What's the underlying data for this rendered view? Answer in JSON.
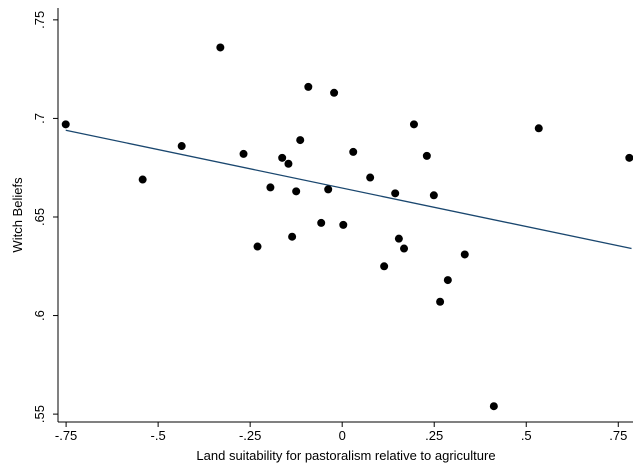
{
  "chart_data": {
    "type": "scatter",
    "x_label": "Land suitability for pastoralism relative to agriculture",
    "y_label": "Witch Beliefs",
    "x": [
      -0.751,
      -0.542,
      -0.436,
      -0.331,
      -0.268,
      -0.23,
      -0.195,
      -0.163,
      -0.146,
      -0.136,
      -0.125,
      -0.114,
      -0.092,
      -0.057,
      -0.038,
      -0.022,
      0.003,
      0.03,
      0.076,
      0.114,
      0.144,
      0.154,
      0.168,
      0.195,
      0.23,
      0.249,
      0.266,
      0.287,
      0.333,
      0.412,
      0.534,
      0.78
    ],
    "values": [
      0.697,
      0.669,
      0.686,
      0.736,
      0.682,
      0.635,
      0.665,
      0.68,
      0.677,
      0.64,
      0.663,
      0.689,
      0.716,
      0.647,
      0.664,
      0.713,
      0.646,
      0.683,
      0.67,
      0.625,
      0.662,
      0.639,
      0.634,
      0.697,
      0.681,
      0.661,
      0.607,
      0.618,
      0.631,
      0.554,
      0.695,
      0.68
    ],
    "color": "#000000",
    "fit_line": {
      "x": [
        -0.751,
        0.786
      ],
      "values": [
        0.694,
        0.634
      ],
      "color": "#1a476f"
    },
    "xlim": [
      -0.772,
      0.79
    ],
    "ylim": [
      0.546,
      0.755
    ],
    "xticks": [
      {
        "value": -0.75,
        "label": "-.75"
      },
      {
        "value": -0.5,
        "label": "-.5"
      },
      {
        "value": -0.25,
        "label": "-.25"
      },
      0,
      {
        "value": 0.25,
        "label": ".25"
      },
      {
        "value": 0.5,
        "label": ".5"
      },
      {
        "value": 0.75,
        "label": ".75"
      }
    ],
    "yticks": [
      {
        "value": 0.55,
        "label": ".55"
      },
      {
        "value": 0.6,
        "label": ".6"
      },
      {
        "value": 0.65,
        "label": ".65"
      },
      {
        "value": 0.7,
        "label": ".7"
      },
      {
        "value": 0.75,
        "label": ".75"
      }
    ],
    "grid": false
  }
}
